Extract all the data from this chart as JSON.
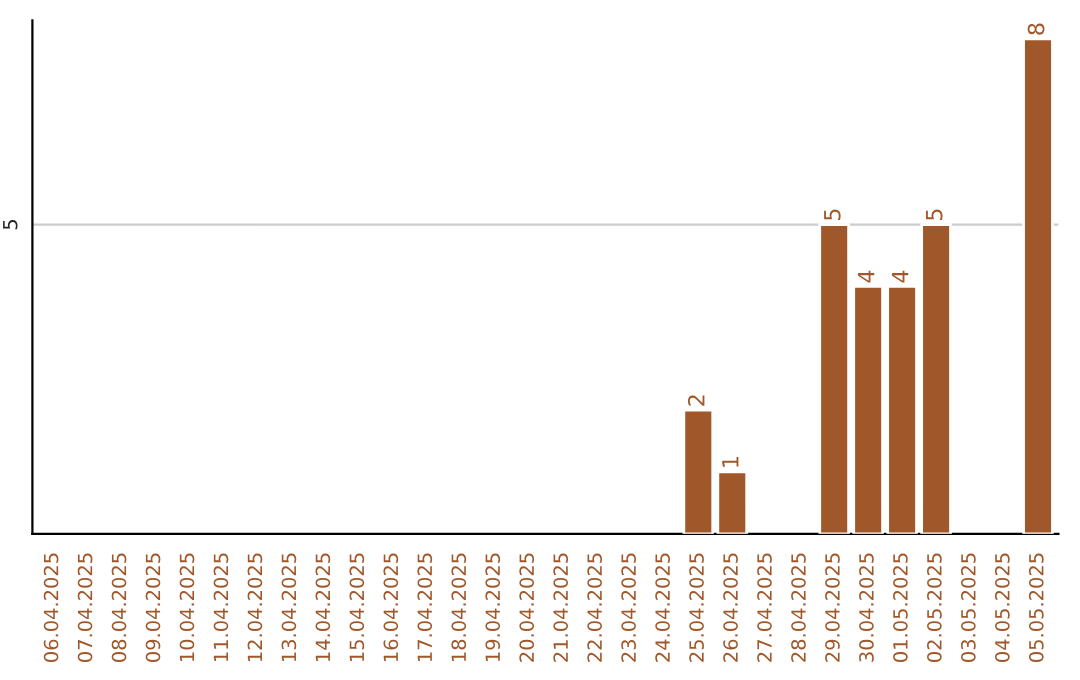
{
  "chart_data": {
    "type": "bar",
    "categories": [
      "06.04.2025",
      "07.04.2025",
      "08.04.2025",
      "09.04.2025",
      "10.04.2025",
      "11.04.2025",
      "12.04.2025",
      "13.04.2025",
      "14.04.2025",
      "15.04.2025",
      "16.04.2025",
      "17.04.2025",
      "18.04.2025",
      "19.04.2025",
      "20.04.2025",
      "21.04.2025",
      "22.04.2025",
      "23.04.2025",
      "24.04.2025",
      "25.04.2025",
      "26.04.2025",
      "27.04.2025",
      "28.04.2025",
      "29.04.2025",
      "30.04.2025",
      "01.05.2025",
      "02.05.2025",
      "03.05.2025",
      "04.05.2025",
      "05.05.2025"
    ],
    "values": [
      null,
      null,
      null,
      null,
      null,
      null,
      null,
      null,
      null,
      null,
      null,
      null,
      null,
      null,
      null,
      null,
      null,
      null,
      null,
      2,
      1,
      null,
      null,
      5,
      4,
      4,
      5,
      null,
      null,
      8
    ],
    "color": "#a0582a",
    "ylim": [
      0,
      8.3
    ],
    "yticks": [
      5
    ],
    "grid": "y",
    "data_labels": true
  }
}
